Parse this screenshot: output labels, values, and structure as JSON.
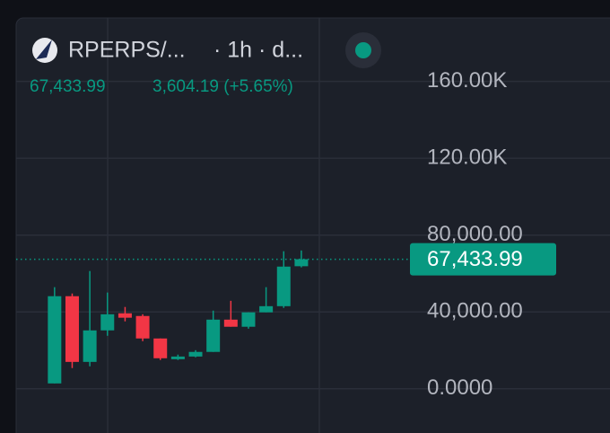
{
  "chart_data": {
    "type": "candlestick",
    "title": "RPERPS/...",
    "interval": "· 1h · d...",
    "last": {
      "value": 67433.99,
      "label": "67,433.99"
    },
    "change": "3,604.19 (+5.65%)",
    "up_color": "#089981",
    "down_color": "#f23645",
    "series": {
      "open": [
        2800,
        48200,
        14000,
        30400,
        39300,
        37900,
        26200,
        15400,
        16800,
        19200,
        36000,
        32300,
        39800,
        43000,
        63800
      ],
      "high": [
        52900,
        49600,
        61300,
        50100,
        42600,
        38800,
        26200,
        17800,
        20100,
        40700,
        45800,
        39800,
        52900,
        71600,
        72000
      ],
      "low": [
        2800,
        10800,
        11700,
        27600,
        35100,
        24800,
        15000,
        15000,
        16400,
        19200,
        32300,
        31300,
        39800,
        42100,
        63200
      ],
      "close": [
        48200,
        14000,
        30400,
        38800,
        37000,
        26200,
        15900,
        16800,
        19200,
        36000,
        32300,
        39800,
        43000,
        63600,
        67433.99
      ]
    },
    "ylim": [
      -23000,
      193000
    ],
    "yticks": [
      {
        "value": 0,
        "label": "0.0000"
      },
      {
        "value": 40000,
        "label": "40,000.00"
      },
      {
        "value": 80000,
        "label": "80,000.00"
      },
      {
        "value": 120000,
        "label": "120.00K"
      },
      {
        "value": 160000,
        "label": "160.00K"
      }
    ],
    "grid": true
  }
}
